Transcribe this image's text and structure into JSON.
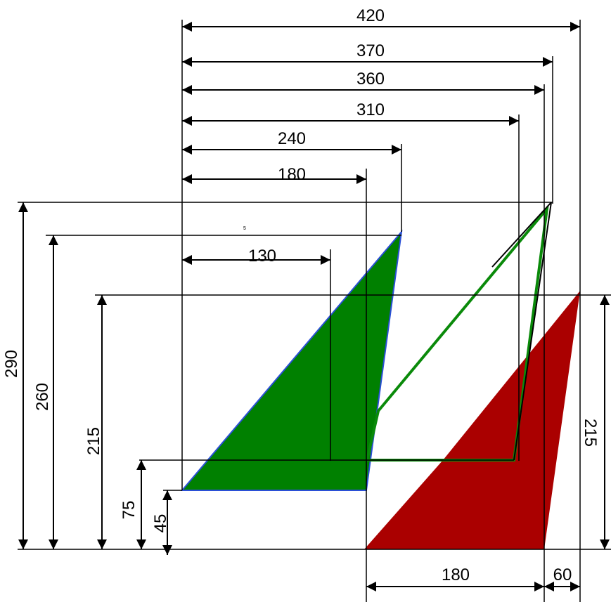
{
  "dimensions": {
    "top": [
      "420",
      "370",
      "360",
      "310",
      "240",
      "180",
      "130"
    ],
    "left": [
      "290",
      "260",
      "215",
      "75",
      "45"
    ],
    "right": "215",
    "bottom": [
      "180",
      "60"
    ]
  },
  "annotation": "5",
  "colors": {
    "green_fill": "#008000",
    "blue_edge": "#2a4fd6",
    "red_fill": "#aa0000",
    "outline": "#000000"
  }
}
